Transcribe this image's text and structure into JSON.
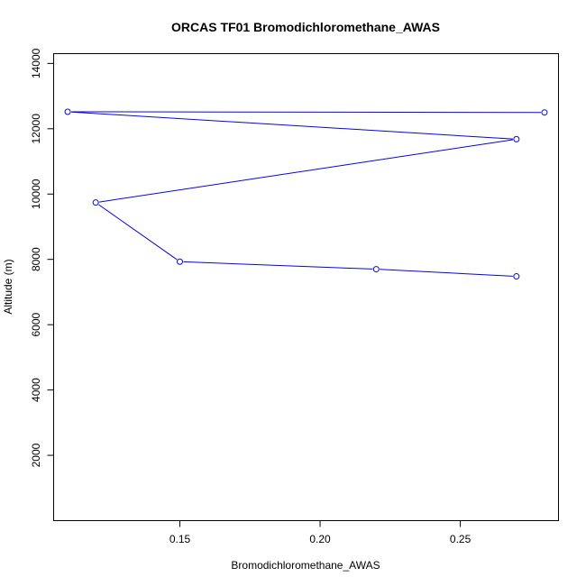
{
  "chart_data": {
    "type": "line",
    "title": "ORCAS TF01 Bromodichloromethane_AWAS",
    "xlabel": "Bromodichloromethane_AWAS",
    "ylabel": "Altitude (m)",
    "xlim": [
      0.105,
      0.285
    ],
    "ylim": [
      0,
      14300
    ],
    "xticks": [
      0.15,
      0.2,
      0.25
    ],
    "xtick_labels": [
      "0.15",
      "0.20",
      "0.25"
    ],
    "yticks": [
      2000,
      4000,
      6000,
      8000,
      10000,
      12000,
      14000
    ],
    "ytick_labels": [
      "2000",
      "4000",
      "6000",
      "8000",
      "10000",
      "12000",
      "14000"
    ],
    "series": [
      {
        "color": "#0000ff",
        "marker": "open-circle",
        "points": [
          {
            "x": 0.28,
            "y": 12500
          },
          {
            "x": 0.11,
            "y": 12520
          },
          {
            "x": 0.27,
            "y": 11680
          },
          {
            "x": 0.12,
            "y": 9740
          },
          {
            "x": 0.15,
            "y": 7930
          },
          {
            "x": 0.22,
            "y": 7700
          },
          {
            "x": 0.27,
            "y": 7480
          }
        ]
      }
    ],
    "grid": false,
    "legend": "none"
  }
}
